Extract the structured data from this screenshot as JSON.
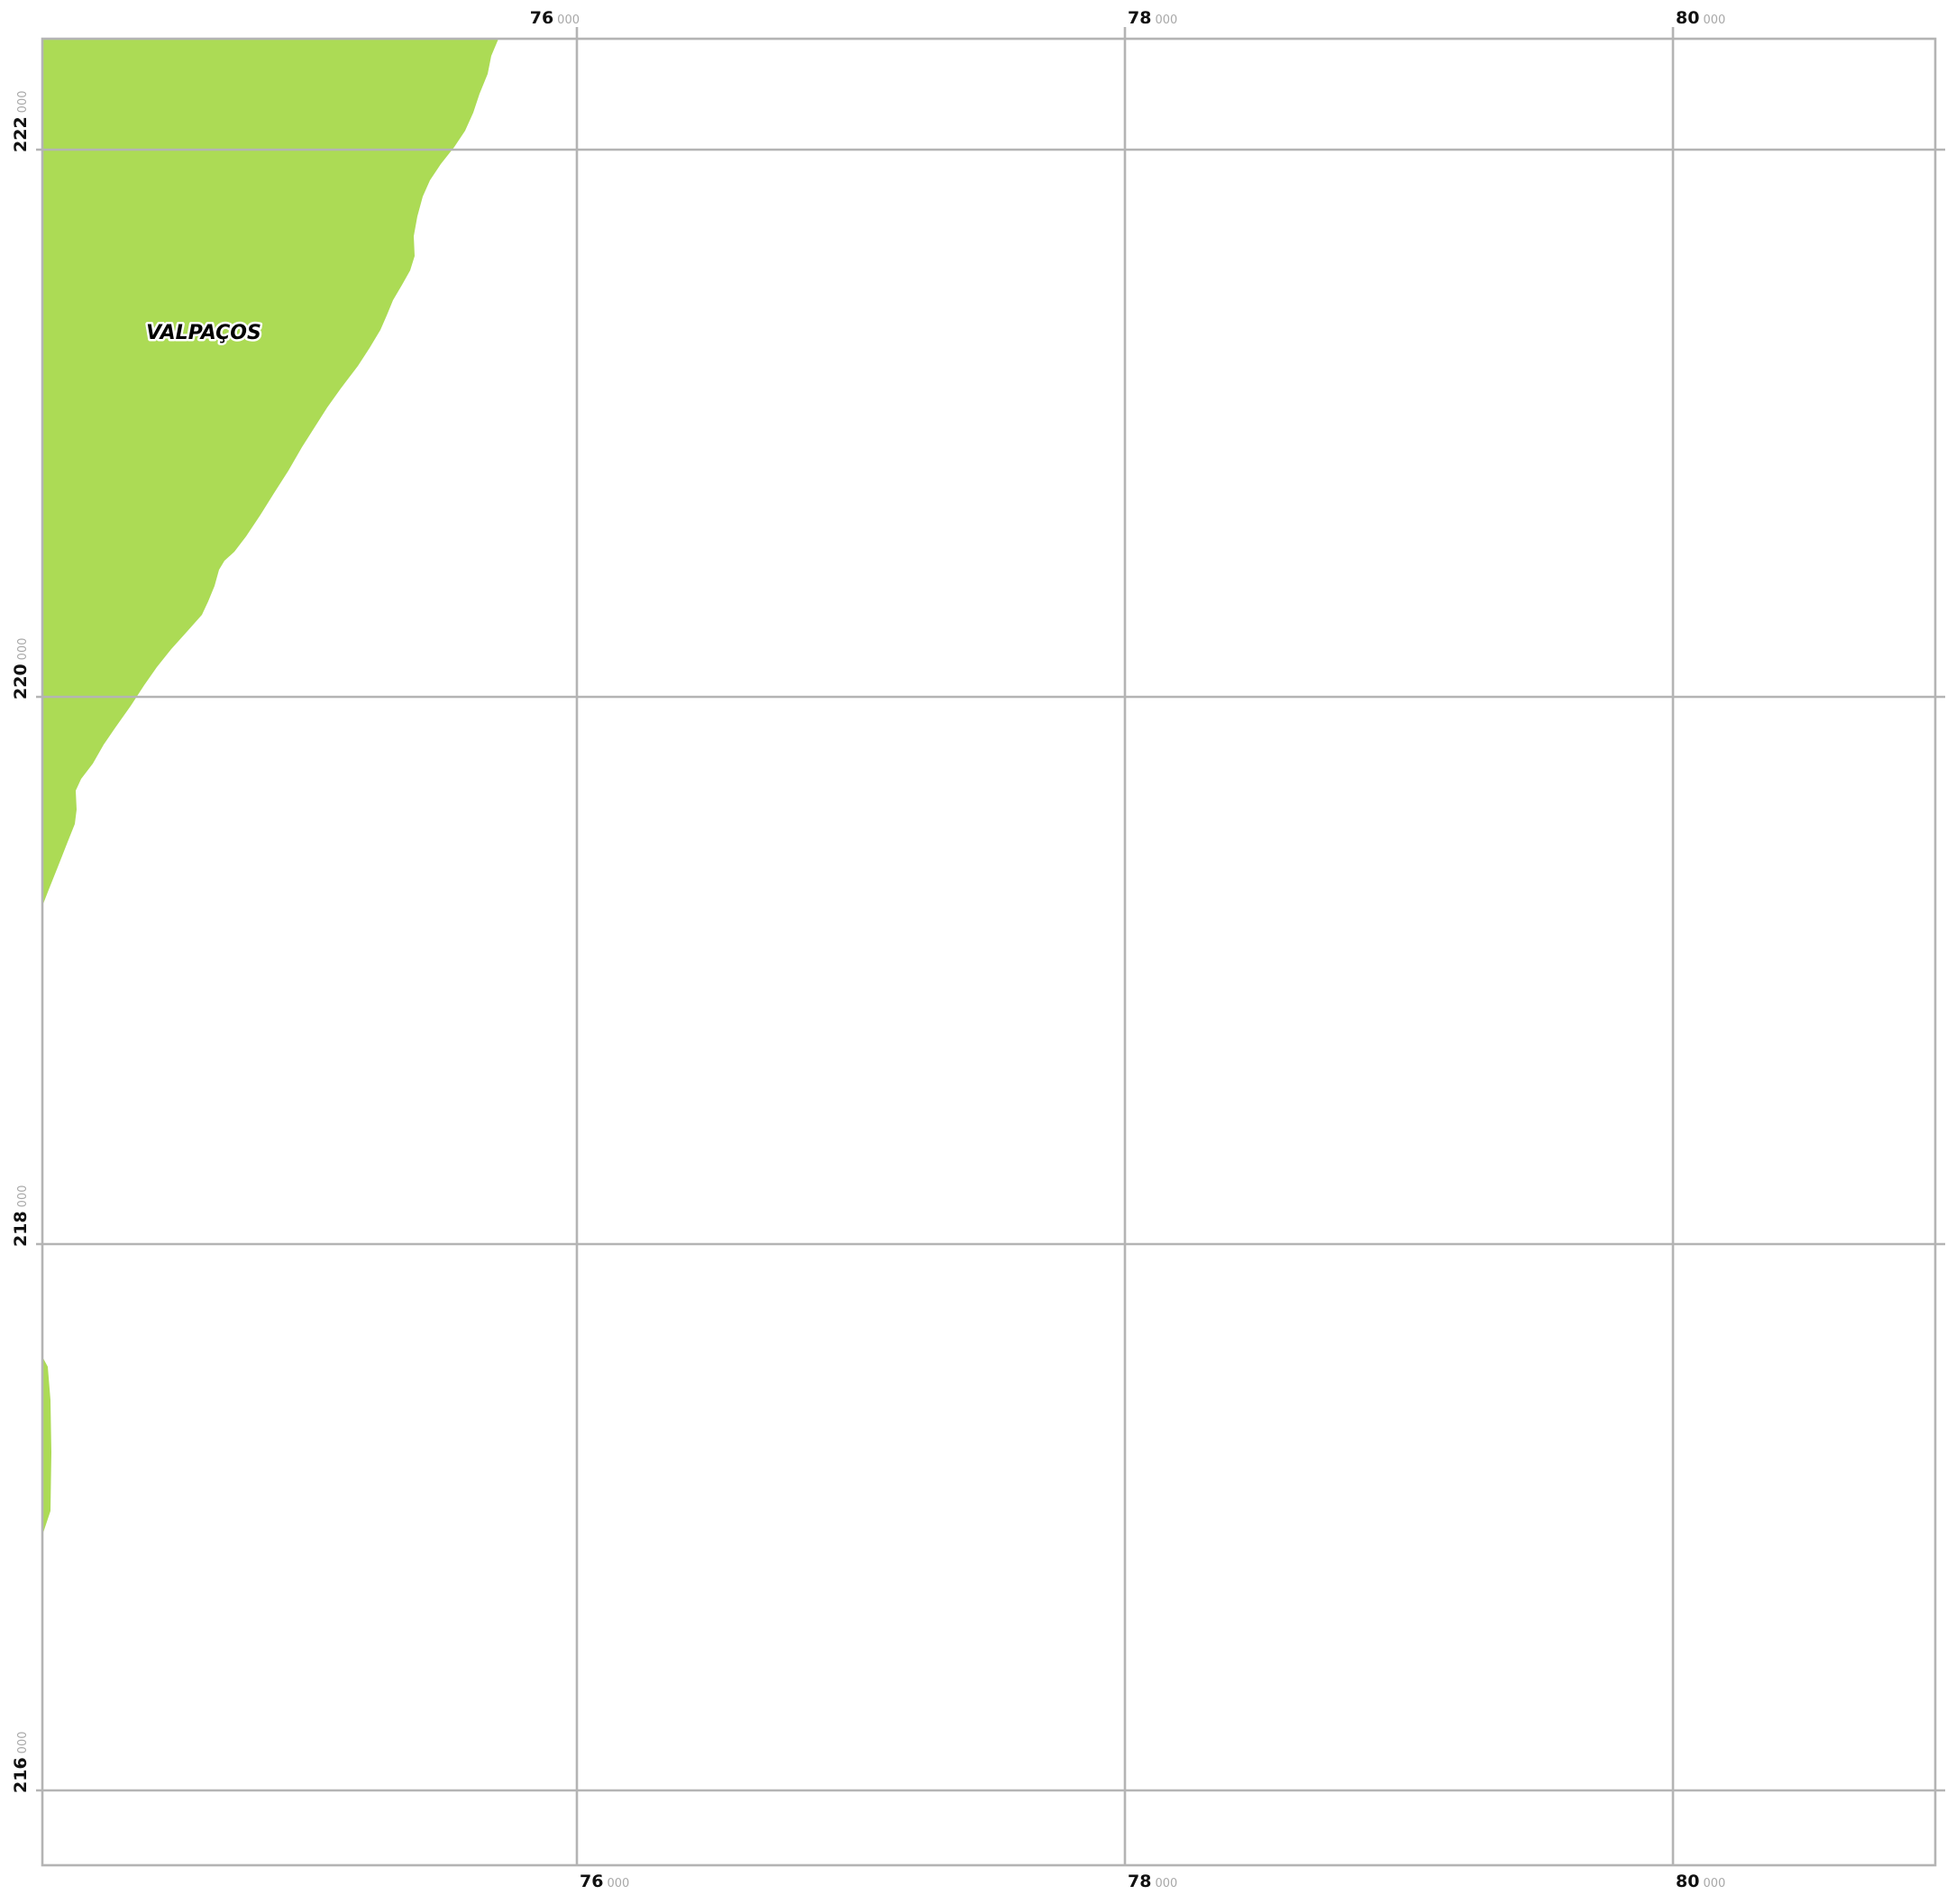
{
  "map": {
    "fill_color": "#acdb55",
    "grid_color": "#b4b4b4",
    "background": "#ffffff",
    "place_labels": [
      {
        "text": "VALPAÇOS"
      }
    ],
    "easting_labels": [
      {
        "major": "76",
        "minor": "000"
      },
      {
        "major": "78",
        "minor": "000"
      },
      {
        "major": "80",
        "minor": "000"
      }
    ],
    "northing_labels": [
      {
        "major": "222",
        "minor": "000"
      },
      {
        "major": "220",
        "minor": "000"
      },
      {
        "major": "218",
        "minor": "000"
      },
      {
        "major": "216",
        "minor": "000"
      }
    ]
  }
}
